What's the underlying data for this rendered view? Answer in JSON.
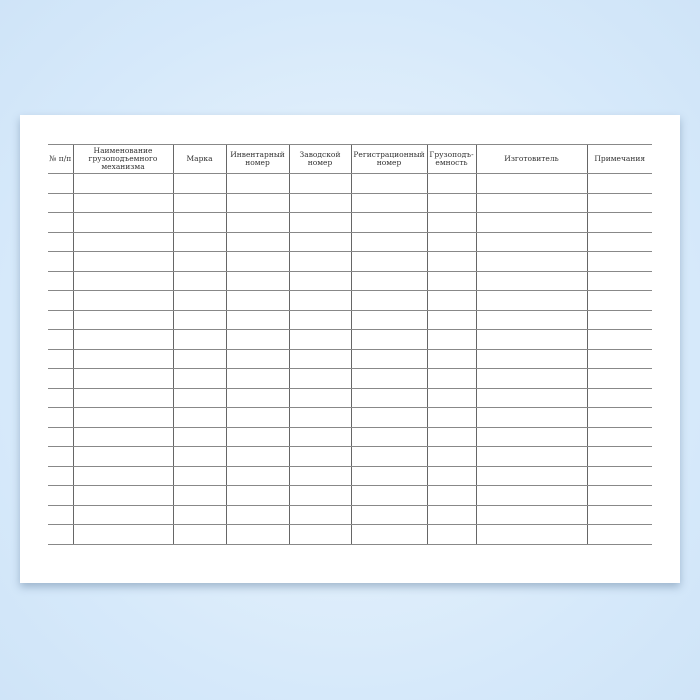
{
  "table": {
    "columns": [
      "№ п/п",
      "Наименование грузоподъемного механизма",
      "Марка",
      "Инвентарный номер",
      "Заводской номер",
      "Регистрационный номер",
      "Грузоподъ-емность",
      "Изготовитель",
      "Примечания"
    ],
    "empty_rows": 19
  }
}
